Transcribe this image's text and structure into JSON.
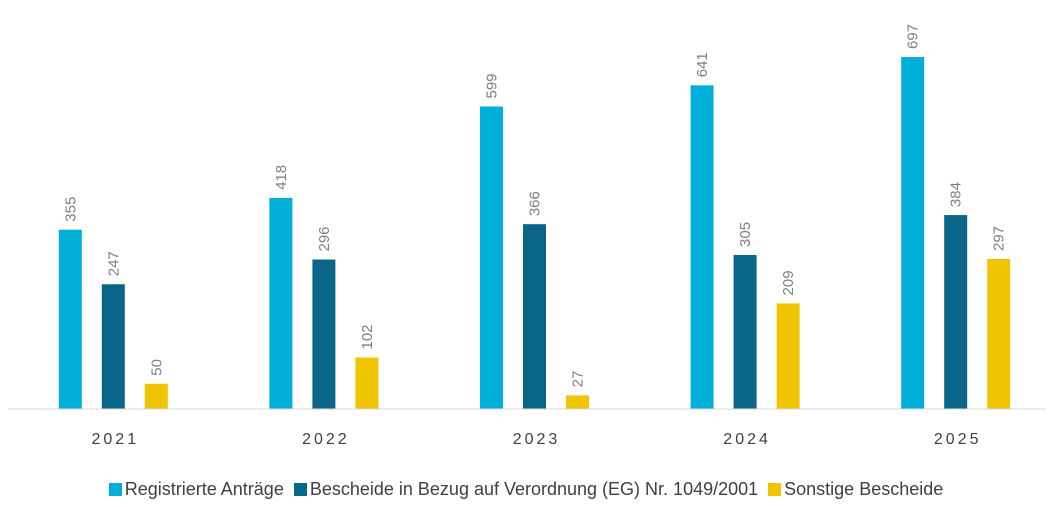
{
  "chart_data": {
    "type": "bar",
    "categories": [
      "2021",
      "2022",
      "2023",
      "2024",
      "2025"
    ],
    "ylim": [
      0,
      800
    ],
    "series": [
      {
        "name": "Registrierte Anträge",
        "color": "#00b0d8",
        "values": [
          355,
          418,
          599,
          641,
          697
        ]
      },
      {
        "name": "Bescheide in Bezug auf Verordnung (EG) Nr. 1049/2001",
        "color": "#0a6688",
        "values": [
          247,
          296,
          366,
          305,
          384
        ]
      },
      {
        "name": "Sonstige Bescheide",
        "color": "#f0c400",
        "values": [
          50,
          102,
          27,
          209,
          297
        ]
      }
    ]
  }
}
